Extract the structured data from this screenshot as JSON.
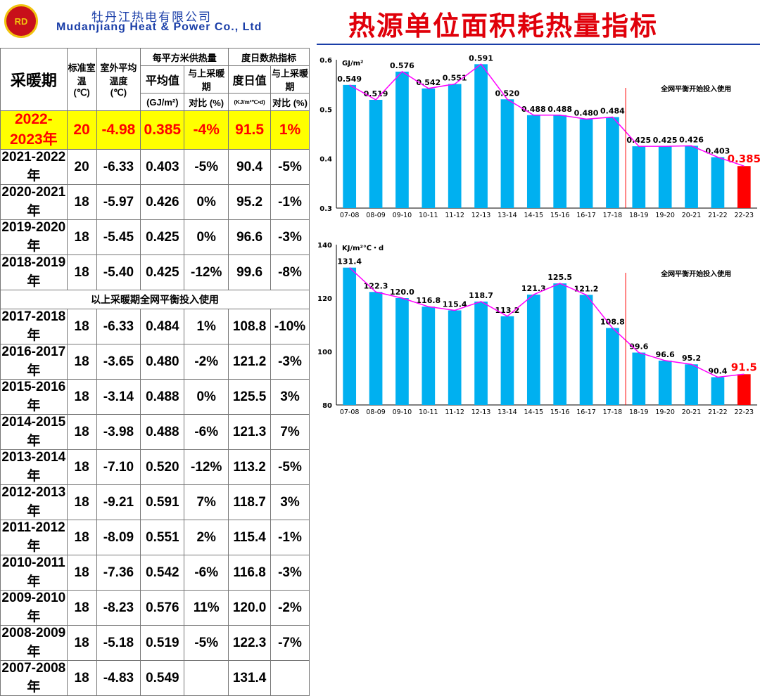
{
  "header": {
    "logo_text": "RD",
    "company_cn": "牡丹江热电有限公司",
    "company_en": "Mudanjiang Heat & Power  Co., Ltd",
    "title": "热源单位面积耗热量指标"
  },
  "table": {
    "headers": {
      "period": "采暖期",
      "room_temp": "标准室温",
      "room_temp_unit": "(℃)",
      "out_temp_1": "室外平均",
      "out_temp_2": "温度",
      "out_temp_unit": "(℃)",
      "heat_group": "每平方米供热量",
      "avg": "平均值",
      "avg_unit": "(GJ/m²)",
      "cmp": "与上采暖期",
      "cmp2": "对比 (%)",
      "dd_group": "度日数热指标",
      "dd": "度日值",
      "dd_unit": "(KJ/m²℃•d)",
      "dd_cmp": "与上采暖期",
      "dd_cmp2": "对比 (%)"
    },
    "highlight": [
      "2022-2023年",
      "20",
      "-4.98",
      "0.385",
      "-4%",
      "91.5",
      "1%"
    ],
    "rows_a": [
      [
        "2021-2022年",
        "20",
        "-6.33",
        "0.403",
        "-5%",
        "90.4",
        "-5%"
      ],
      [
        "2020-2021年",
        "18",
        "-5.97",
        "0.426",
        "0%",
        "95.2",
        "-1%"
      ],
      [
        "2019-2020年",
        "18",
        "-5.45",
        "0.425",
        "0%",
        "96.6",
        "-3%"
      ],
      [
        "2018-2019年",
        "18",
        "-5.40",
        "0.425",
        "-12%",
        "99.6",
        "-8%"
      ]
    ],
    "note": "以上采暖期全网平衡投入使用",
    "rows_b": [
      [
        "2017-2018年",
        "18",
        "-6.33",
        "0.484",
        "1%",
        "108.8",
        "-10%"
      ],
      [
        "2016-2017年",
        "18",
        "-3.65",
        "0.480",
        "-2%",
        "121.2",
        "-3%"
      ],
      [
        "2015-2016年",
        "18",
        "-3.14",
        "0.488",
        "0%",
        "125.5",
        "3%"
      ],
      [
        "2014-2015年",
        "18",
        "-3.98",
        "0.488",
        "-6%",
        "121.3",
        "7%"
      ],
      [
        "2013-2014年",
        "18",
        "-7.10",
        "0.520",
        "-12%",
        "113.2",
        "-5%"
      ],
      [
        "2012-2013年",
        "18",
        "-9.21",
        "0.591",
        "7%",
        "118.7",
        "3%"
      ],
      [
        "2011-2012年",
        "18",
        "-8.09",
        "0.551",
        "2%",
        "115.4",
        "-1%"
      ],
      [
        "2010-2011年",
        "18",
        "-7.36",
        "0.542",
        "-6%",
        "116.8",
        "-3%"
      ],
      [
        "2009-2010年",
        "18",
        "-8.23",
        "0.576",
        "11%",
        "120.0",
        "-2%"
      ],
      [
        "2008-2009年",
        "18",
        "-5.18",
        "0.519",
        "-5%",
        "122.3",
        "-7%"
      ],
      [
        "2007-2008年",
        "18",
        "-4.83",
        "0.549",
        "",
        "131.4",
        ""
      ]
    ]
  },
  "chart_data": [
    {
      "type": "bar",
      "ylabel": "GJ/m²",
      "ylim": [
        0.3,
        0.6
      ],
      "yticks": [
        "0.3",
        "0.4",
        "0.5",
        "0.6"
      ],
      "annotation": "全网平衡开始投入使用",
      "colors": {
        "bar": "#00b0f0",
        "last": "#ff0000",
        "line": "#ff00ff"
      },
      "categories": [
        "07-08",
        "08-09",
        "09-10",
        "10-11",
        "11-12",
        "12-13",
        "13-14",
        "14-15",
        "15-16",
        "16-17",
        "17-18",
        "18-19",
        "19-20",
        "20-21",
        "21-22",
        "22-23"
      ],
      "values": [
        0.549,
        0.519,
        0.576,
        0.542,
        0.551,
        0.591,
        0.52,
        0.488,
        0.488,
        0.48,
        0.484,
        0.425,
        0.425,
        0.426,
        0.403,
        0.385
      ],
      "labels": [
        "0.549",
        "0.519",
        "0.576",
        "0.542",
        "0.551",
        "0.591",
        "0.520",
        "0.488",
        "0.488",
        "0.480",
        "0.484",
        "0.425",
        "0.425",
        "0.426",
        "0.403",
        "0.385"
      ]
    },
    {
      "type": "bar",
      "ylabel": "KJ/m²℃・d",
      "ylim": [
        80,
        140
      ],
      "yticks": [
        "80",
        "100",
        "120",
        "140"
      ],
      "annotation": "全网平衡开始投入使用",
      "colors": {
        "bar": "#00b0f0",
        "last": "#ff0000",
        "line": "#ff00ff"
      },
      "categories": [
        "07-08",
        "08-09",
        "09-10",
        "10-11",
        "11-12",
        "12-13",
        "13-14",
        "14-15",
        "15-16",
        "16-17",
        "17-18",
        "18-19",
        "19-20",
        "20-21",
        "21-22",
        "22-23"
      ],
      "values": [
        131.4,
        122.3,
        120.0,
        116.8,
        115.4,
        118.7,
        113.2,
        121.3,
        125.5,
        121.2,
        108.8,
        99.6,
        96.6,
        95.2,
        90.4,
        91.5
      ],
      "labels": [
        "131.4",
        "122.3",
        "120.0",
        "116.8",
        "115.4",
        "118.7",
        "113.2",
        "121.3",
        "125.5",
        "121.2",
        "108.8",
        "99.6",
        "96.6",
        "95.2",
        "90.4",
        "91.5"
      ]
    }
  ]
}
